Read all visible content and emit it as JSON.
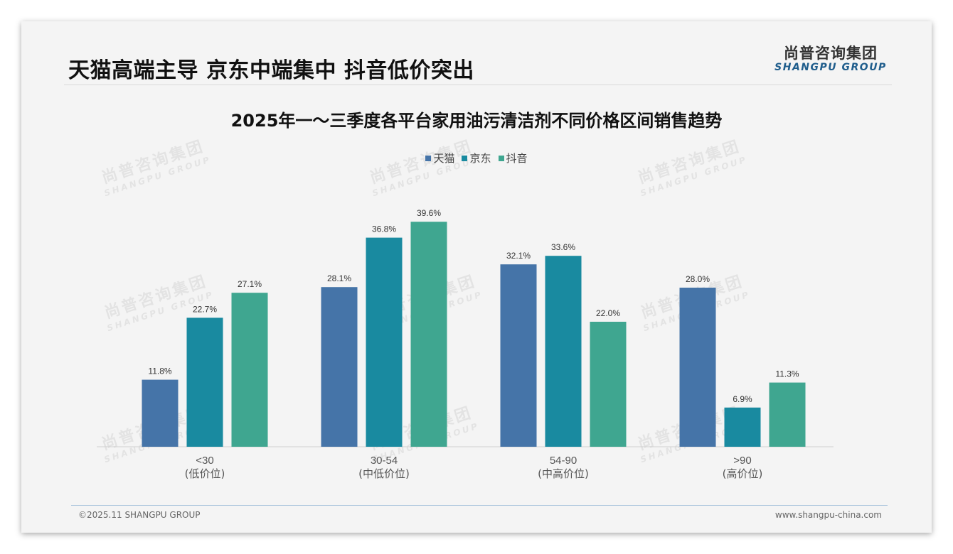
{
  "header": {
    "headline": "天猫高端主导 京东中端集中 抖音低价突出",
    "logo_cn": "尚普咨询集团",
    "logo_en": "SHANGPU GROUP"
  },
  "watermark": {
    "cn": "尚普咨询集团",
    "en": "SHANGPU GROUP"
  },
  "footer": {
    "copyright": "©2025.11 SHANGPU GROUP",
    "website": "www.shangpu-china.com"
  },
  "chart_data": {
    "type": "bar",
    "title": "2025年一～三季度各平台家用油污清洁剂不同价格区间销售趋势",
    "legend_position": "top-center",
    "grid": false,
    "ylim": [
      0,
      45
    ],
    "categories": [
      {
        "range": "<30",
        "label": "(低价位)"
      },
      {
        "range": "30-54",
        "label": "(中低价位)"
      },
      {
        "range": "54-90",
        "label": "(中高价位)"
      },
      {
        "range": ">90",
        "label": "(高价位)"
      }
    ],
    "series": [
      {
        "name": "天猫",
        "color": "#4574a8",
        "values": [
          11.8,
          28.1,
          32.1,
          28.0
        ],
        "labels": [
          "11.8%",
          "28.1%",
          "32.1%",
          "28.0%"
        ]
      },
      {
        "name": "京东",
        "color": "#198aa0",
        "values": [
          22.7,
          36.8,
          33.6,
          6.9
        ],
        "labels": [
          "22.7%",
          "36.8%",
          "33.6%",
          "6.9%"
        ]
      },
      {
        "name": "抖音",
        "color": "#3fa690",
        "values": [
          27.1,
          39.6,
          22.0,
          11.3
        ],
        "labels": [
          "27.1%",
          "39.6%",
          "22.0%",
          "11.3%"
        ]
      }
    ]
  }
}
